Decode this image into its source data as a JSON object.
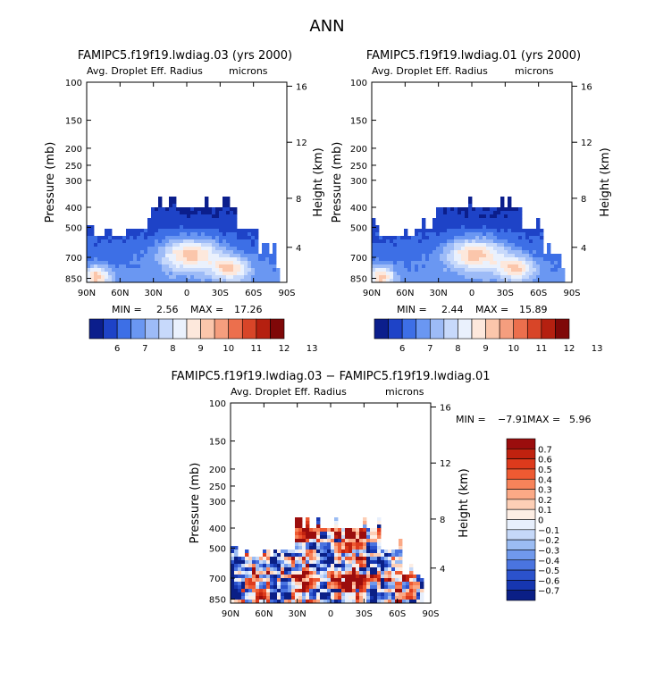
{
  "page_title": "ANN",
  "chart_data": [
    {
      "type": "heatmap",
      "title": "FAMIPC5.f19f19.lwdiag.03 (yrs 2000)",
      "variable": "Avg. Droplet Eff. Radius",
      "units": "microns",
      "ylabel_left": "Pressure (mb)",
      "ylabel_right": "Height (km)",
      "x_ticks": [
        "90N",
        "60N",
        "30N",
        "0",
        "30S",
        "60S",
        "90S"
      ],
      "pressure_ticks": [
        "100",
        "150",
        "200",
        "250",
        "300",
        "400",
        "500",
        "700",
        "850"
      ],
      "height_ticks": [
        "16",
        "12",
        "8",
        "4"
      ],
      "min_label": "MIN = ",
      "min_value": "2.56",
      "max_label": "MAX = ",
      "max_value": "17.26",
      "colorbar_levels": [
        "6",
        "7",
        "8",
        "9",
        "10",
        "11",
        "12",
        "13"
      ],
      "colorbar_colors": [
        "#0b1e8c",
        "#1e43c7",
        "#3d6fe6",
        "#6a97f2",
        "#9dbbf7",
        "#c7d9fb",
        "#eaf1fd",
        "#fde8dc",
        "#fbc6ab",
        "#f59e7e",
        "#ec6f4d",
        "#d84528",
        "#b52010",
        "#7f0808"
      ]
    },
    {
      "type": "heatmap",
      "title": "FAMIPC5.f19f19.lwdiag.01 (yrs 2000)",
      "variable": "Avg. Droplet Eff. Radius",
      "units": "microns",
      "ylabel_left": "Pressure (mb)",
      "ylabel_right": "Height (km)",
      "x_ticks": [
        "90N",
        "60N",
        "30N",
        "0",
        "30S",
        "60S",
        "90S"
      ],
      "pressure_ticks": [
        "100",
        "150",
        "200",
        "250",
        "300",
        "400",
        "500",
        "700",
        "850"
      ],
      "height_ticks": [
        "16",
        "12",
        "8",
        "4"
      ],
      "min_label": "MIN = ",
      "min_value": "2.44",
      "max_label": "MAX = ",
      "max_value": "15.89",
      "colorbar_levels": [
        "6",
        "7",
        "8",
        "9",
        "10",
        "11",
        "12",
        "13"
      ],
      "colorbar_colors": [
        "#0b1e8c",
        "#1e43c7",
        "#3d6fe6",
        "#6a97f2",
        "#9dbbf7",
        "#c7d9fb",
        "#eaf1fd",
        "#fde8dc",
        "#fbc6ab",
        "#f59e7e",
        "#ec6f4d",
        "#d84528",
        "#b52010",
        "#7f0808"
      ]
    },
    {
      "type": "heatmap",
      "title": "FAMIPC5.f19f19.lwdiag.03 − FAMIPC5.f19f19.lwdiag.01",
      "variable": "Avg. Droplet Eff. Radius",
      "units": "microns",
      "ylabel_left": "Pressure (mb)",
      "ylabel_right": "Height (km)",
      "x_ticks": [
        "90N",
        "60N",
        "30N",
        "0",
        "30S",
        "60S",
        "90S"
      ],
      "pressure_ticks": [
        "100",
        "150",
        "200",
        "250",
        "300",
        "400",
        "500",
        "700",
        "850"
      ],
      "height_ticks": [
        "16",
        "12",
        "8",
        "4"
      ],
      "min_label": "MIN = ",
      "min_value": "−7.91",
      "max_label": "MAX = ",
      "max_value": "5.96",
      "colorbar_levels": [
        "0.7",
        "0.6",
        "0.5",
        "0.4",
        "0.3",
        "0.2",
        "0.1",
        "0",
        "−0.1",
        "−0.2",
        "−0.3",
        "−0.4",
        "−0.5",
        "−0.6",
        "−0.7"
      ],
      "colorbar_colors": [
        "#9b0d0d",
        "#c0220f",
        "#dd3a1c",
        "#ee5a32",
        "#f7835a",
        "#fba986",
        "#fdcfb6",
        "#fdeee4",
        "#e7effc",
        "#c5d8f8",
        "#9bbcf3",
        "#7099ec",
        "#4a74e0",
        "#2b52cc",
        "#1636b0",
        "#0a1f86"
      ]
    }
  ]
}
